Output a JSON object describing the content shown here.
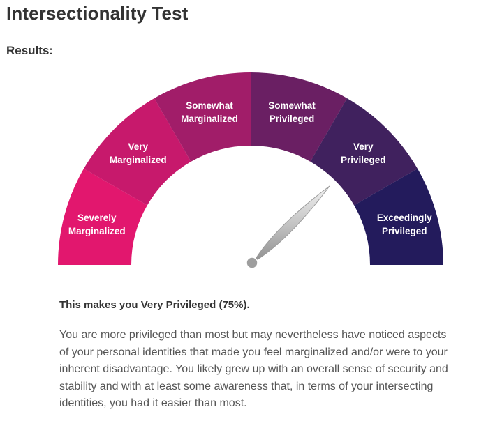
{
  "page": {
    "title": "Intersectionality Test",
    "results_heading": "Results:"
  },
  "gauge": {
    "needle_value_percent": 75,
    "segments": [
      {
        "line1": "Severely",
        "line2": "Marginalized",
        "color": "#e2176e"
      },
      {
        "line1": "Very",
        "line2": "Marginalized",
        "color": "#c7196c"
      },
      {
        "line1": "Somewhat",
        "line2": "Marginalized",
        "color": "#a11d69"
      },
      {
        "line1": "Somewhat",
        "line2": "Privileged",
        "color": "#6a1f63"
      },
      {
        "line1": "Very",
        "line2": "Privileged",
        "color": "#40215e"
      },
      {
        "line1": "Exceedingly",
        "line2": "Privileged",
        "color": "#231b5c"
      }
    ],
    "needle_color": "#bdbdbd",
    "pivot_color": "#9e9e9e"
  },
  "result": {
    "verdict": "This makes you Very Privileged (75%).",
    "description": "You are more privileged than most but may nevertheless have noticed aspects of your personal identities that made you feel marginalized and/or were to your inherent disadvantage. You likely grew up with an overall sense of security and stability and with at least some awareness that, in terms of your intersecting identities, you had it easier than most."
  }
}
